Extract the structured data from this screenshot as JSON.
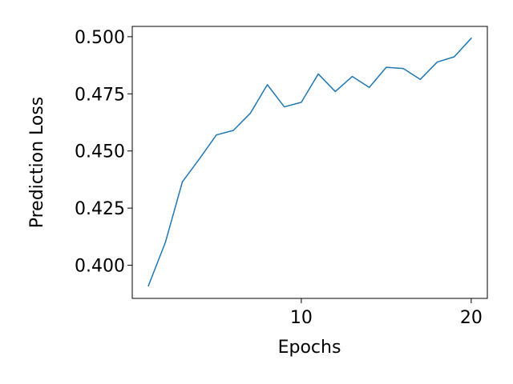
{
  "chart_data": {
    "type": "line",
    "title": "",
    "xlabel": "Epochs",
    "ylabel": "Prediction Loss",
    "xlim": [
      0.05,
      20.95
    ],
    "ylim": [
      0.3855,
      0.5045
    ],
    "xticks": [
      10,
      20
    ],
    "xtick_labels": [
      "10",
      "20"
    ],
    "yticks": [
      0.4,
      0.425,
      0.45,
      0.475,
      0.5
    ],
    "ytick_labels": [
      "0.400",
      "0.425",
      "0.450",
      "0.475",
      "0.500"
    ],
    "grid": false,
    "legend": "none",
    "series": [
      {
        "color": "#1f77b4",
        "x": [
          1,
          2,
          3,
          4,
          5,
          6,
          7,
          8,
          9,
          10,
          11,
          12,
          13,
          14,
          15,
          16,
          17,
          18,
          19,
          20
        ],
        "values": [
          0.391,
          0.41,
          0.4365,
          0.4465,
          0.457,
          0.459,
          0.4665,
          0.479,
          0.4693,
          0.4713,
          0.4837,
          0.476,
          0.4826,
          0.4778,
          0.4866,
          0.4861,
          0.4813,
          0.4889,
          0.4912,
          0.4993
        ]
      }
    ]
  }
}
